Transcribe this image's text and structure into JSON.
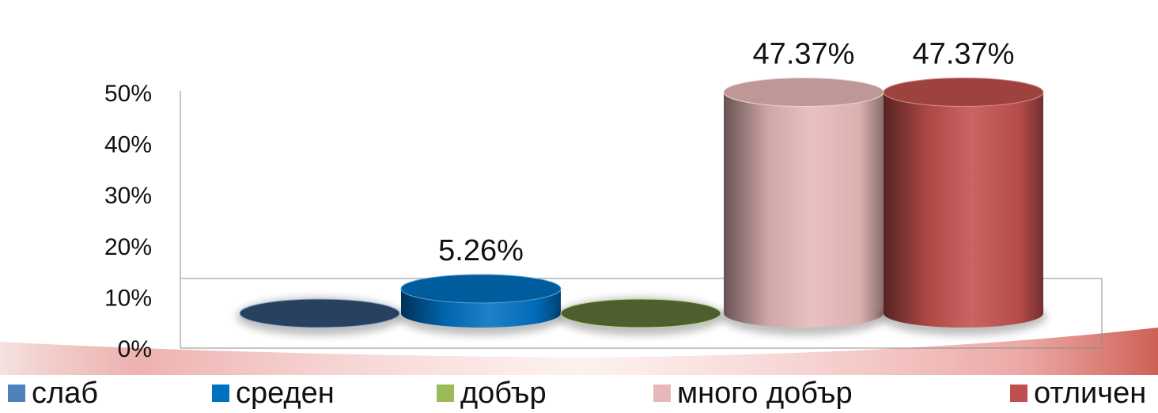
{
  "chart_data": {
    "type": "bar",
    "categories": [
      "слаб",
      "среден",
      "добър",
      "много добър",
      "отличен"
    ],
    "values": [
      0,
      5.26,
      0,
      47.37,
      47.37
    ],
    "data_labels": [
      "",
      "5.26%",
      "",
      "47.37%",
      "47.37%"
    ],
    "y_ticks": [
      "0%",
      "10%",
      "20%",
      "30%",
      "40%",
      "50%"
    ],
    "ylim": [
      0,
      50
    ],
    "colors": {
      "слаб": "#4f81bd",
      "среден": "#0070c0",
      "добър": "#9bbb59",
      "много добър": "#e6b9b8",
      "отличен": "#c0504d"
    },
    "legend": "bottom",
    "grid": false
  }
}
